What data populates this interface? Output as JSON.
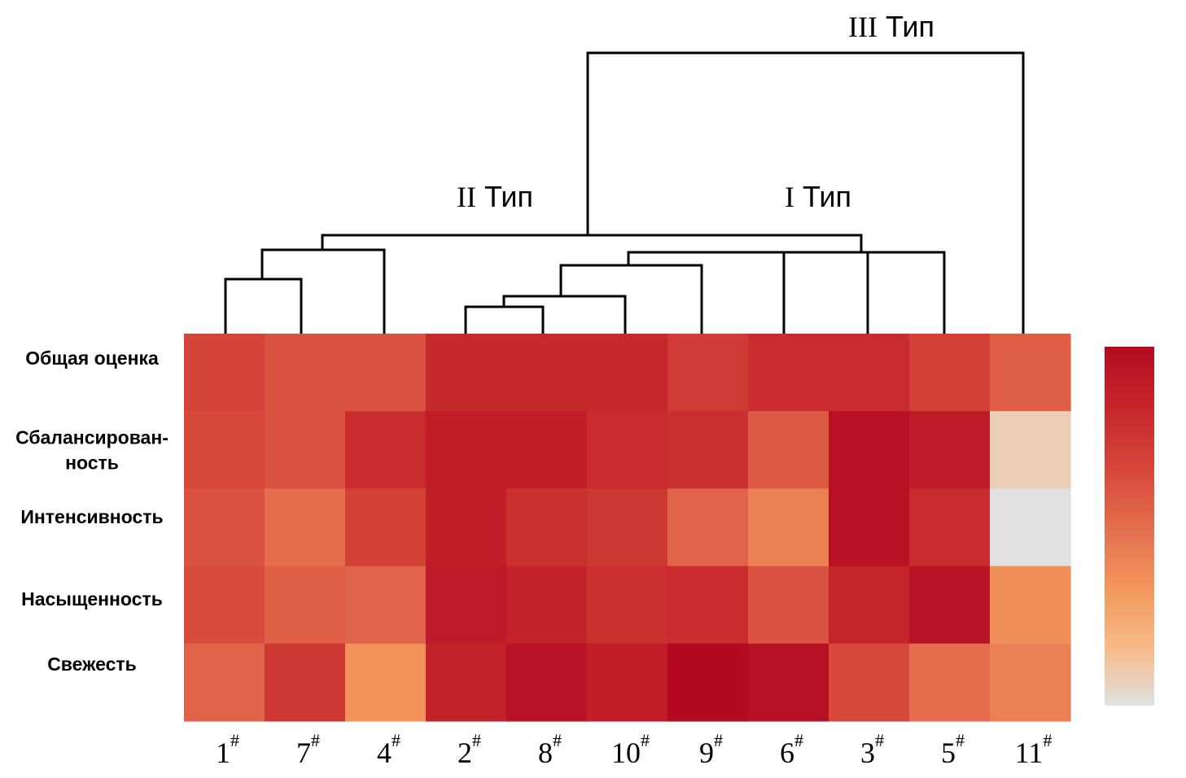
{
  "chart_data": {
    "type": "heatmap",
    "columns": [
      "1#",
      "7#",
      "4#",
      "2#",
      "8#",
      "10#",
      "9#",
      "6#",
      "3#",
      "5#",
      "11#"
    ],
    "column_labels": [
      {
        "num": "1",
        "sup": "#"
      },
      {
        "num": "7",
        "sup": "#"
      },
      {
        "num": "4",
        "sup": "#"
      },
      {
        "num": "2",
        "sup": "#"
      },
      {
        "num": "8",
        "sup": "#"
      },
      {
        "num": "10",
        "sup": "#"
      },
      {
        "num": "9",
        "sup": "#"
      },
      {
        "num": "6",
        "sup": "#"
      },
      {
        "num": "3",
        "sup": "#"
      },
      {
        "num": "5",
        "sup": "#"
      },
      {
        "num": "11",
        "sup": "#"
      }
    ],
    "rows": [
      {
        "label_lines": [
          "Общая оценка"
        ]
      },
      {
        "label_lines": [
          "Сбалансирован-",
          "ность"
        ]
      },
      {
        "label_lines": [
          "Интенсивность"
        ]
      },
      {
        "label_lines": [
          "Насыщенность"
        ]
      },
      {
        "label_lines": [
          "Свежесть"
        ]
      }
    ],
    "values": [
      [
        0.68,
        0.62,
        0.62,
        0.82,
        0.82,
        0.82,
        0.72,
        0.8,
        0.8,
        0.7,
        0.56
      ],
      [
        0.66,
        0.62,
        0.8,
        0.88,
        0.88,
        0.8,
        0.78,
        0.58,
        0.96,
        0.9,
        0.08
      ],
      [
        0.62,
        0.5,
        0.7,
        0.88,
        0.78,
        0.74,
        0.54,
        0.42,
        0.96,
        0.8,
        0.0
      ],
      [
        0.64,
        0.56,
        0.54,
        0.9,
        0.86,
        0.78,
        0.8,
        0.62,
        0.84,
        0.95,
        0.36
      ],
      [
        0.54,
        0.74,
        0.34,
        0.86,
        0.95,
        0.88,
        1.0,
        0.97,
        0.66,
        0.5,
        0.42
      ]
    ],
    "colorscale": [
      "#e1e1e1",
      "#f7b985",
      "#f3955c",
      "#e36d4e",
      "#d54639",
      "#c5262b",
      "#b20b21"
    ],
    "dendrogram_types": [
      {
        "roman": "III",
        "word": "Тип"
      },
      {
        "roman": "II",
        "word": "Тип"
      },
      {
        "roman": "I",
        "word": "Тип"
      }
    ]
  }
}
